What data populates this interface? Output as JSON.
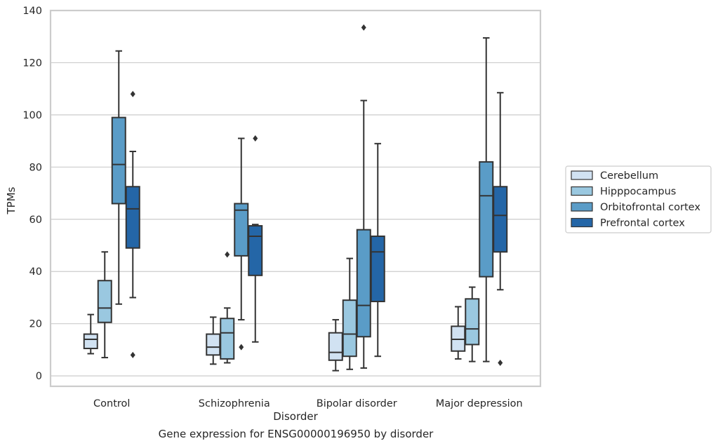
{
  "caption": "Gene expression for ENSG00000196950 by disorder",
  "chart_data": {
    "type": "box",
    "xlabel": "Disorder",
    "ylabel": "TPMs",
    "ylim": [
      -4,
      140
    ],
    "yticks": [
      0,
      20,
      40,
      60,
      80,
      100,
      120,
      140
    ],
    "grid": true,
    "legend_position": "center-right",
    "categories": [
      "Control",
      "Schizophrenia",
      "Bipolar disorder",
      "Major depression"
    ],
    "series": [
      {
        "name": "Cerebellum",
        "color": "#d1e2f2",
        "boxes": [
          {
            "whisker_low": 8.5,
            "q1": 10.5,
            "median": 14,
            "q3": 16,
            "whisker_high": 23.5,
            "outliers": []
          },
          {
            "whisker_low": 4.5,
            "q1": 8,
            "median": 11,
            "q3": 16,
            "whisker_high": 22.5,
            "outliers": []
          },
          {
            "whisker_low": 2,
            "q1": 6,
            "median": 9,
            "q3": 16.5,
            "whisker_high": 21.5,
            "outliers": []
          },
          {
            "whisker_low": 6.5,
            "q1": 9.5,
            "median": 14,
            "q3": 19,
            "whisker_high": 26.5,
            "outliers": []
          }
        ]
      },
      {
        "name": "Hipppocampus",
        "color": "#9ac8e0",
        "boxes": [
          {
            "whisker_low": 7,
            "q1": 20.5,
            "median": 26,
            "q3": 36.5,
            "whisker_high": 47.5,
            "outliers": []
          },
          {
            "whisker_low": 5,
            "q1": 6.5,
            "median": 16.5,
            "q3": 22,
            "whisker_high": 26,
            "outliers": [
              46.5
            ]
          },
          {
            "whisker_low": 2.5,
            "q1": 7.5,
            "median": 16,
            "q3": 29,
            "whisker_high": 45,
            "outliers": []
          },
          {
            "whisker_low": 5.5,
            "q1": 12,
            "median": 18,
            "q3": 29.5,
            "whisker_high": 34,
            "outliers": []
          }
        ]
      },
      {
        "name": "Orbitofrontal cortex",
        "color": "#5a9cc7",
        "boxes": [
          {
            "whisker_low": 27.5,
            "q1": 66,
            "median": 81,
            "q3": 99,
            "whisker_high": 124.5,
            "outliers": []
          },
          {
            "whisker_low": 21.5,
            "q1": 46,
            "median": 63.5,
            "q3": 66,
            "whisker_high": 91,
            "outliers": [
              11
            ]
          },
          {
            "whisker_low": 3,
            "q1": 15,
            "median": 27,
            "q3": 56,
            "whisker_high": 105.5,
            "outliers": [
              133.5
            ]
          },
          {
            "whisker_low": 5.5,
            "q1": 38,
            "median": 69,
            "q3": 82,
            "whisker_high": 129.5,
            "outliers": []
          }
        ]
      },
      {
        "name": "Prefrontal cortex",
        "color": "#2466a7",
        "boxes": [
          {
            "whisker_low": 30,
            "q1": 49,
            "median": 64,
            "q3": 72.5,
            "whisker_high": 86,
            "outliers": [
              108,
              8
            ]
          },
          {
            "whisker_low": 13,
            "q1": 38.5,
            "median": 53.5,
            "q3": 57.5,
            "whisker_high": 58,
            "outliers": [
              91
            ]
          },
          {
            "whisker_low": 7.5,
            "q1": 28.5,
            "median": 47.5,
            "q3": 53.5,
            "whisker_high": 89,
            "outliers": []
          },
          {
            "whisker_low": 33,
            "q1": 47.5,
            "median": 61.5,
            "q3": 72.5,
            "whisker_high": 108.5,
            "outliers": [
              5
            ]
          }
        ]
      }
    ]
  }
}
